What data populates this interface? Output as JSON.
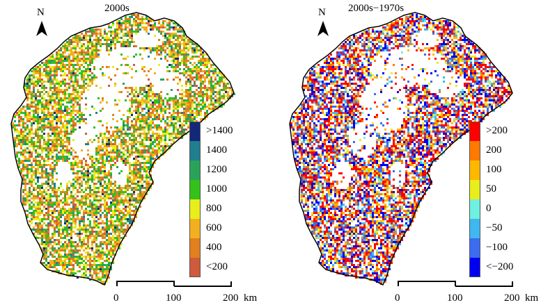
{
  "panels": [
    {
      "title": "2000s",
      "north": "N",
      "legend": [
        {
          "label": ">1400",
          "color": "#14287a"
        },
        {
          "label": "1400",
          "color": "#1f7f8e"
        },
        {
          "label": "1200",
          "color": "#2aa35a"
        },
        {
          "label": "1000",
          "color": "#33c21c"
        },
        {
          "label": "800",
          "color": "#e8ee1a"
        },
        {
          "label": "600",
          "color": "#f2b01e"
        },
        {
          "label": "400",
          "color": "#e0801e"
        },
        {
          "label": "<200",
          "color": "#cf5a3c"
        }
      ]
    },
    {
      "title": "2000s−1970s",
      "north": "N",
      "legend": [
        {
          "label": ">200",
          "color": "#ff0000"
        },
        {
          "label": "200",
          "color": "#ff7a00"
        },
        {
          "label": "100",
          "color": "#ffb800"
        },
        {
          "label": "50",
          "color": "#e8ee1a"
        },
        {
          "label": "0",
          "color": "#6ff0e0"
        },
        {
          "label": "−50",
          "color": "#3fb8f0"
        },
        {
          "label": "−100",
          "color": "#3c6cf0"
        },
        {
          "label": "<−200",
          "color": "#0000f0"
        }
      ]
    }
  ],
  "scalebar": {
    "ticks": [
      "0",
      "100",
      "200"
    ],
    "unit": "km"
  }
}
